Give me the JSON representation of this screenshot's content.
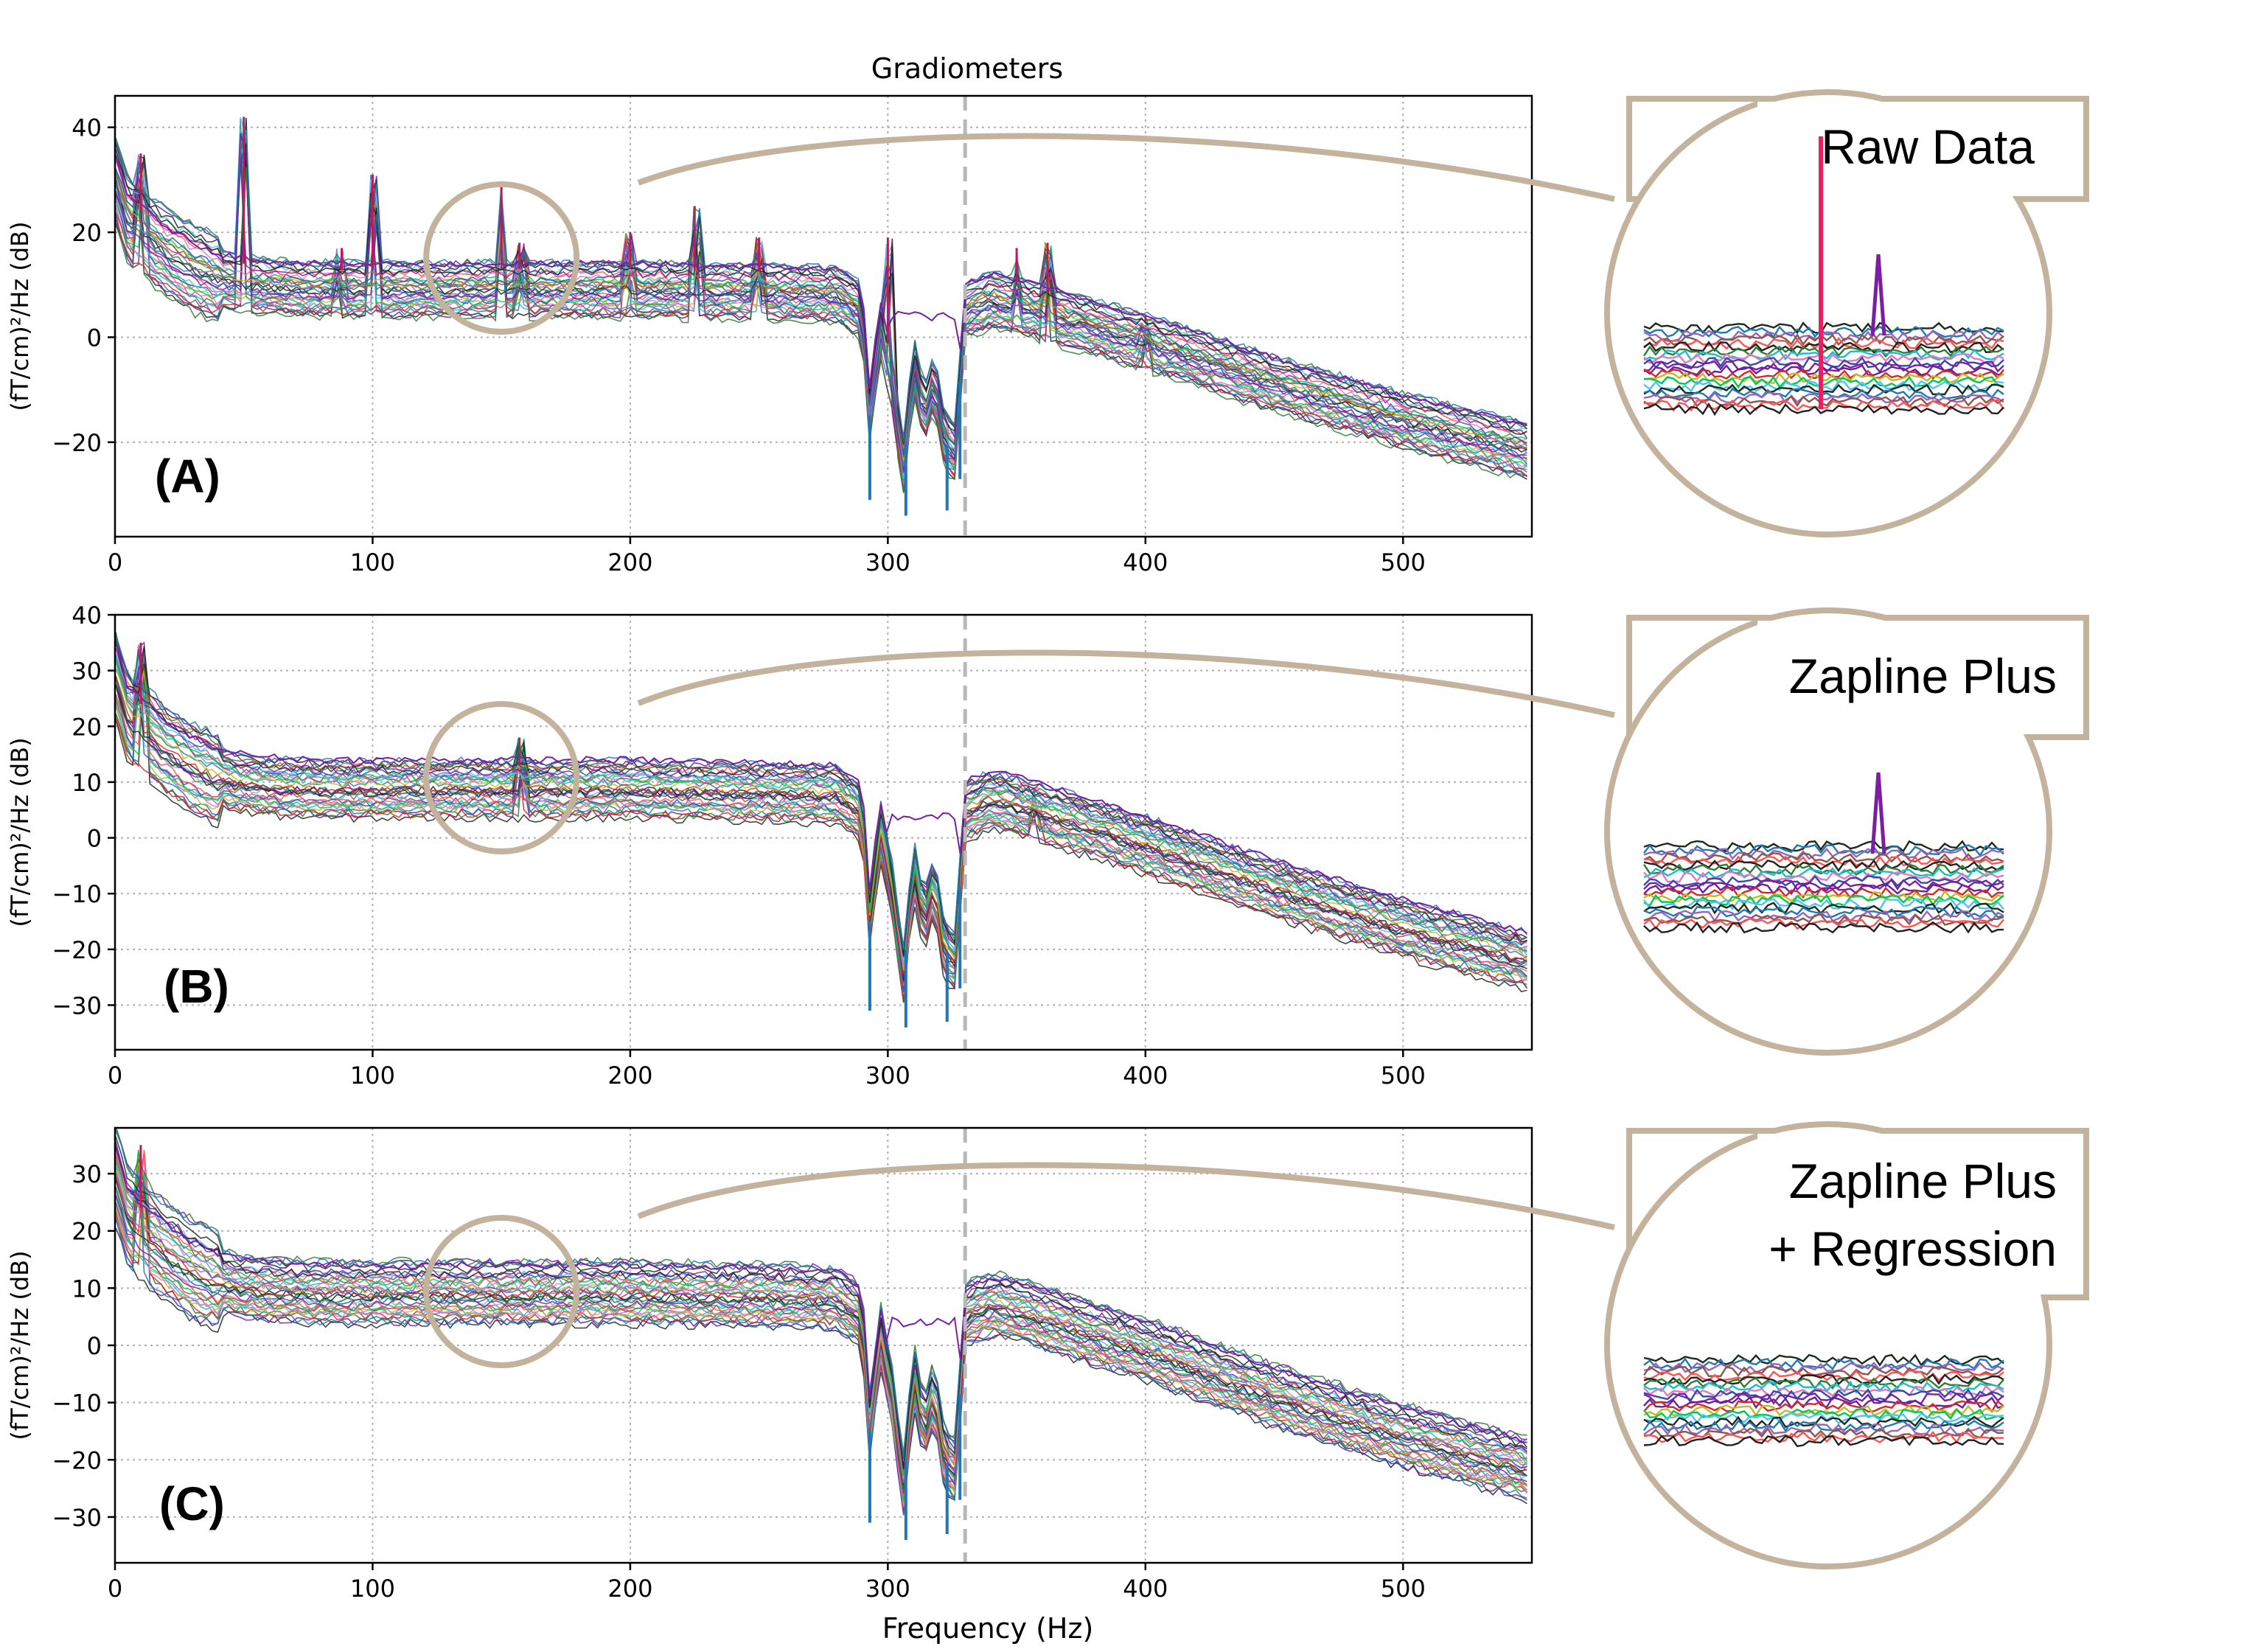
{
  "figure": {
    "title": "Gradiometers",
    "xlabel": "Frequency (Hz)",
    "ylabel": "(fT/cm)²/Hz (dB)",
    "vline_x": 330,
    "zoom_center_x": 150
  },
  "chart_data": [
    {
      "type": "line",
      "panel": "(A)",
      "zoom_label": [
        "Raw Data"
      ],
      "xlim": [
        0,
        550
      ],
      "ylim": [
        -38,
        46
      ],
      "xticks": [
        0,
        100,
        200,
        300,
        400,
        500
      ],
      "yticks": [
        -20,
        0,
        20,
        40
      ],
      "grid": true,
      "series_count_note_shown": false,
      "envelope_x": [
        0,
        5,
        10,
        20,
        30,
        40,
        50,
        60,
        80,
        100,
        150,
        200,
        250,
        280,
        290,
        293,
        297,
        302,
        306,
        310,
        314,
        318,
        322,
        326,
        330,
        340,
        350,
        400,
        450,
        500,
        550
      ],
      "envelope_mid_y": [
        30,
        22,
        20,
        16,
        13,
        11,
        10,
        9.5,
        9,
        9,
        9,
        9,
        8.5,
        8,
        5,
        -15,
        2,
        -10,
        -25,
        -5,
        -15,
        -8,
        -20,
        -22,
        5,
        7,
        6,
        -1,
        -9,
        -16,
        -22
      ],
      "peaks": [
        {
          "x": 10,
          "y": 35
        },
        {
          "x": 50,
          "y": 42
        },
        {
          "x": 88,
          "y": 17
        },
        {
          "x": 100,
          "y": 31
        },
        {
          "x": 150,
          "y": 29
        },
        {
          "x": 157,
          "y": 18
        },
        {
          "x": 200,
          "y": 20
        },
        {
          "x": 225,
          "y": 25
        },
        {
          "x": 250,
          "y": 19
        },
        {
          "x": 300,
          "y": 19
        },
        {
          "x": 350,
          "y": 17
        },
        {
          "x": 362,
          "y": 18
        },
        {
          "x": 400,
          "y": 4
        }
      ],
      "notch_min": [
        {
          "x": 293,
          "y": -31
        },
        {
          "x": 307,
          "y": -34
        },
        {
          "x": 323,
          "y": -33
        },
        {
          "x": 328,
          "y": -27
        }
      ]
    },
    {
      "type": "line",
      "panel": "(B)",
      "zoom_label": [
        "Zapline Plus"
      ],
      "xlim": [
        0,
        550
      ],
      "ylim": [
        -38,
        40
      ],
      "xticks": [
        0,
        100,
        200,
        300,
        400,
        500
      ],
      "yticks": [
        -30,
        -20,
        -10,
        0,
        10,
        20,
        30,
        40
      ],
      "grid": true,
      "envelope_x": [
        0,
        5,
        10,
        20,
        30,
        40,
        50,
        60,
        80,
        100,
        150,
        200,
        250,
        280,
        290,
        293,
        297,
        302,
        306,
        310,
        314,
        318,
        322,
        326,
        330,
        340,
        350,
        400,
        450,
        500,
        550
      ],
      "envelope_mid_y": [
        30,
        22,
        20,
        16,
        13,
        11,
        10,
        9.5,
        9,
        9,
        9,
        9,
        8.5,
        8,
        5,
        -15,
        2,
        -10,
        -25,
        -5,
        -15,
        -8,
        -20,
        -22,
        5,
        7,
        6,
        -1,
        -9,
        -16,
        -22
      ],
      "peaks": [
        {
          "x": 10,
          "y": 35
        },
        {
          "x": 157,
          "y": 18
        },
        {
          "x": 358,
          "y": 9
        }
      ],
      "notch_min": [
        {
          "x": 293,
          "y": -31
        },
        {
          "x": 307,
          "y": -34
        },
        {
          "x": 323,
          "y": -33
        },
        {
          "x": 328,
          "y": -27
        }
      ]
    },
    {
      "type": "line",
      "panel": "(C)",
      "zoom_label": [
        "Zapline Plus",
        "+ Regression"
      ],
      "xlim": [
        0,
        550
      ],
      "ylim": [
        -38,
        38
      ],
      "xticks": [
        0,
        100,
        200,
        300,
        400,
        500
      ],
      "yticks": [
        -30,
        -20,
        -10,
        0,
        10,
        20,
        30
      ],
      "grid": true,
      "envelope_x": [
        0,
        5,
        10,
        20,
        30,
        40,
        50,
        60,
        80,
        100,
        150,
        200,
        250,
        280,
        290,
        293,
        297,
        302,
        306,
        310,
        314,
        318,
        322,
        326,
        330,
        340,
        350,
        400,
        450,
        500,
        550
      ],
      "envelope_mid_y": [
        30,
        22,
        20,
        16,
        13,
        11,
        10,
        9.5,
        9,
        9,
        9,
        9,
        8.5,
        8,
        5,
        -15,
        2,
        -10,
        -25,
        -5,
        -15,
        -8,
        -20,
        -22,
        5,
        7,
        6,
        -1,
        -9,
        -16,
        -22
      ],
      "peaks": [
        {
          "x": 10,
          "y": 35
        }
      ],
      "notch_min": [
        {
          "x": 293,
          "y": -31
        },
        {
          "x": 307,
          "y": -34
        },
        {
          "x": 323,
          "y": -33
        },
        {
          "x": 328,
          "y": -27
        }
      ]
    }
  ],
  "colors": {
    "callout": "#c4b39c",
    "grid": "#b0b0b0",
    "vline": "#b8b8b8",
    "traces": [
      "#1b2a1b",
      "#6a1fa0",
      "#2e7d32",
      "#1f77b4",
      "#d62728",
      "#17becf",
      "#9467bd",
      "#bcbd22",
      "#e377c2",
      "#8c564b",
      "#00c853",
      "#3949ab",
      "#ff5252",
      "#4fc3f7",
      "#7b1fa2",
      "#212121"
    ]
  }
}
